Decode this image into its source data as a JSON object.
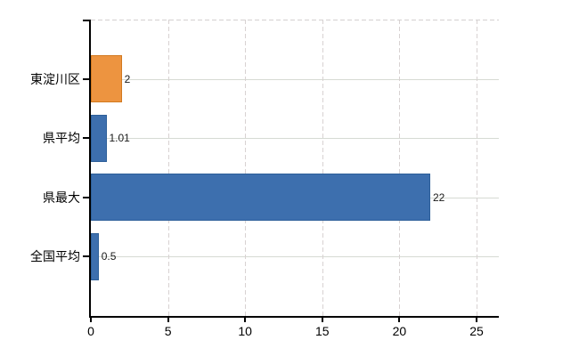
{
  "chart_data": {
    "type": "bar",
    "orientation": "horizontal",
    "title": "",
    "xlabel": "",
    "ylabel": "",
    "categories": [
      "東淀川区",
      "県平均",
      "県最大",
      "全国平均"
    ],
    "values": [
      2,
      1.01,
      22,
      0.5
    ],
    "value_labels": [
      "2",
      "1.01",
      "22",
      "0.5"
    ],
    "bar_fill_colors": [
      "#ED9440",
      "#3D6FAE",
      "#3D6FAE",
      "#3D6FAE"
    ],
    "bar_border_colors": [
      "#D2791F",
      "#2D5F99",
      "#2D5F99",
      "#2D5F99"
    ],
    "x_ticks": [
      0,
      5,
      10,
      15,
      20,
      25
    ],
    "x_tick_labels": [
      "0",
      "5",
      "10",
      "15",
      "20",
      "25"
    ],
    "xlim": [
      0,
      26.4
    ],
    "grid": {
      "vertical": "dashed",
      "horizontal": "solid"
    },
    "legend": "none"
  },
  "colors": {
    "background": "#FFFFFF",
    "axis": "#000000",
    "text": "#000000",
    "value_label_text": "#1A1A1A",
    "gridline_vertical": "#D8D2D2",
    "gridline_horizontal": "#D6DAD3",
    "highlight_orange": "#ED9440",
    "base_blue": "#3D6FAE"
  }
}
